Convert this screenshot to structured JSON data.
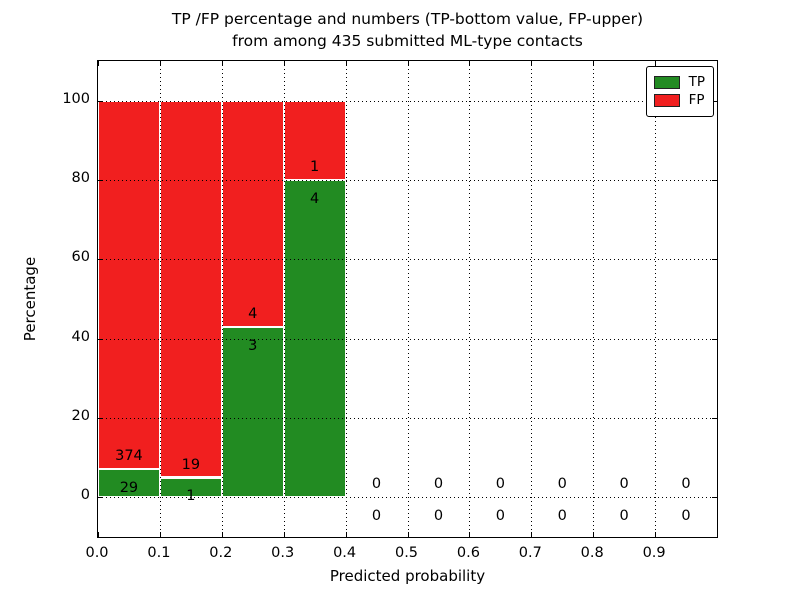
{
  "chart_data": {
    "type": "bar",
    "stacked": true,
    "title_line1": "TP /FP percentage and numbers (TP-bottom value, FP-upper)",
    "title_line2": "from among 435 submitted ML-type contacts",
    "xlabel": "Predicted probability",
    "ylabel": "Percentage",
    "total_contacts": 435,
    "xlim": [
      0.0,
      1.0
    ],
    "ylim": [
      -10,
      110
    ],
    "x_ticks": [
      0.0,
      0.1,
      0.2,
      0.3,
      0.4,
      0.5,
      0.6,
      0.7,
      0.8,
      0.9
    ],
    "x_tick_labels": [
      "0.0",
      "0.1",
      "0.2",
      "0.3",
      "0.4",
      "0.5",
      "0.6",
      "0.7",
      "0.8",
      "0.9"
    ],
    "y_ticks": [
      0,
      20,
      40,
      60,
      80,
      100
    ],
    "y_tick_labels": [
      "0",
      "20",
      "40",
      "60",
      "80",
      "100"
    ],
    "grid_style": "dotted",
    "colors": {
      "tp": "#228b22",
      "fp": "#f11f1f",
      "bar_edge": "#ffffff",
      "grid": "#000000"
    },
    "legend": {
      "position": "upper-right",
      "entries": [
        {
          "label": "TP",
          "color": "#228b22"
        },
        {
          "label": "FP",
          "color": "#f11f1f"
        }
      ]
    },
    "bins": [
      {
        "x_start": 0.0,
        "x_end": 0.1,
        "tp": 29,
        "fp": 374,
        "tp_pct": 7.2,
        "fp_pct": 92.8
      },
      {
        "x_start": 0.1,
        "x_end": 0.2,
        "tp": 1,
        "fp": 19,
        "tp_pct": 5.0,
        "fp_pct": 95.0
      },
      {
        "x_start": 0.2,
        "x_end": 0.3,
        "tp": 3,
        "fp": 4,
        "tp_pct": 42.9,
        "fp_pct": 57.1
      },
      {
        "x_start": 0.3,
        "x_end": 0.4,
        "tp": 4,
        "fp": 1,
        "tp_pct": 80.0,
        "fp_pct": 20.0
      },
      {
        "x_start": 0.4,
        "x_end": 0.5,
        "tp": 0,
        "fp": 0,
        "tp_pct": 0,
        "fp_pct": 0
      },
      {
        "x_start": 0.5,
        "x_end": 0.6,
        "tp": 0,
        "fp": 0,
        "tp_pct": 0,
        "fp_pct": 0
      },
      {
        "x_start": 0.6,
        "x_end": 0.7,
        "tp": 0,
        "fp": 0,
        "tp_pct": 0,
        "fp_pct": 0
      },
      {
        "x_start": 0.7,
        "x_end": 0.8,
        "tp": 0,
        "fp": 0,
        "tp_pct": 0,
        "fp_pct": 0
      },
      {
        "x_start": 0.8,
        "x_end": 0.9,
        "tp": 0,
        "fp": 0,
        "tp_pct": 0,
        "fp_pct": 0
      },
      {
        "x_start": 0.9,
        "x_end": 1.0,
        "tp": 0,
        "fp": 0,
        "tp_pct": 0,
        "fp_pct": 0
      }
    ]
  }
}
